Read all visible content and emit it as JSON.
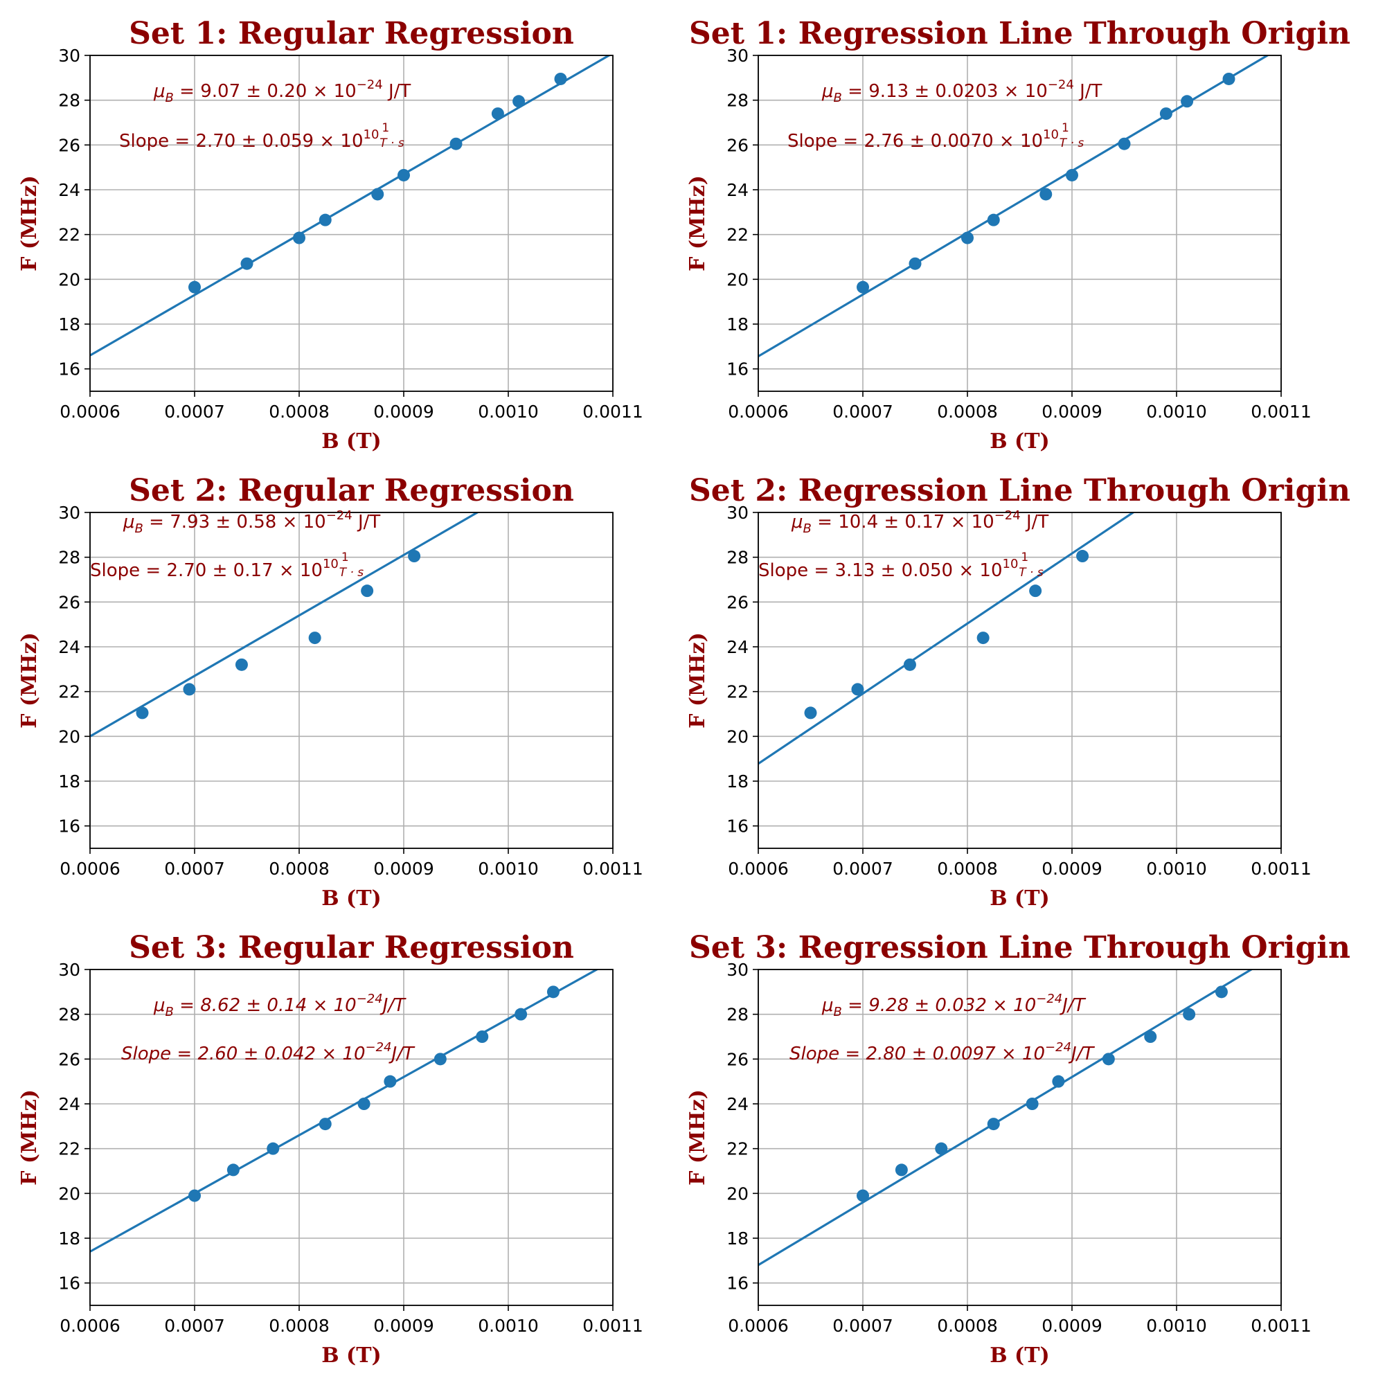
{
  "style": {
    "line_color": "#1f77b4",
    "point_color": "#1f77b4",
    "label_color": "#8b0000",
    "grid_color": "#b0b0b0"
  },
  "chart_data": [
    {
      "type": "scatter",
      "title": "Set 1: Regular Regression",
      "xlabel": "B (T)",
      "ylabel": "F (MHz)",
      "xlim": [
        0.0006,
        0.0011
      ],
      "ylim": [
        15,
        30
      ],
      "xticks": [
        "0.0006",
        "0.0007",
        "0.0008",
        "0.0009",
        "0.0010",
        "0.0011"
      ],
      "yticks": [
        "16",
        "18",
        "20",
        "22",
        "24",
        "26",
        "28",
        "30"
      ],
      "grid": true,
      "points": {
        "x": [
          0.0007,
          0.00075,
          0.0008,
          0.000825,
          0.000875,
          0.0009,
          0.00095,
          0.00099,
          0.00101,
          0.00105
        ],
        "y": [
          19.65,
          20.7,
          21.85,
          22.65,
          23.8,
          24.65,
          26.05,
          27.4,
          27.95,
          28.95
        ]
      },
      "fit_line": {
        "slope": 27000,
        "intercept": 0.4
      },
      "annotations": [
        {
          "text": "μ_B = 9.07 ± 0.20 × 10^−24 J/T",
          "base": "μ",
          "sub": "B",
          "rest": " = 9.07 ± 0.20 × 10",
          "sup": "−24",
          "unit": " J/T",
          "italic": false
        },
        {
          "text": "Slope = 2.70 ± 0.059 × 10^10 1/(T·s)",
          "base": "Slope",
          "sub": "",
          "rest": "  = 2.70 ± 0.059 × 10",
          "sup": "10",
          "unit": "",
          "frac": [
            "1",
            "T · s"
          ],
          "italic": false
        }
      ]
    },
    {
      "type": "scatter",
      "title": "Set 1: Regression Line Through Origin",
      "xlabel": "B (T)",
      "ylabel": "F (MHz)",
      "xlim": [
        0.0006,
        0.0011
      ],
      "ylim": [
        15,
        30
      ],
      "xticks": [
        "0.0006",
        "0.0007",
        "0.0008",
        "0.0009",
        "0.0010",
        "0.0011"
      ],
      "yticks": [
        "16",
        "18",
        "20",
        "22",
        "24",
        "26",
        "28",
        "30"
      ],
      "grid": true,
      "points": {
        "x": [
          0.0007,
          0.00075,
          0.0008,
          0.000825,
          0.000875,
          0.0009,
          0.00095,
          0.00099,
          0.00101,
          0.00105
        ],
        "y": [
          19.65,
          20.7,
          21.85,
          22.65,
          23.8,
          24.65,
          26.05,
          27.4,
          27.95,
          28.95
        ]
      },
      "fit_line": {
        "slope": 27600,
        "intercept": 0
      },
      "annotations": [
        {
          "text": "μ_B = 9.13 ± 0.0203 × 10^−24 J/T",
          "base": "μ",
          "sub": "B",
          "rest": " = 9.13 ± 0.0203 × 10",
          "sup": "−24",
          "unit": " J/T",
          "italic": false
        },
        {
          "text": "Slope = 2.76 ± 0.0070 × 10^10 1/(T·s)",
          "base": "Slope",
          "sub": "",
          "rest": "  = 2.76 ± 0.0070 × 10",
          "sup": "10",
          "unit": "",
          "frac": [
            "1",
            "T · s"
          ],
          "italic": false
        }
      ]
    },
    {
      "type": "scatter",
      "title": "Set 2: Regular Regression",
      "xlabel": "B (T)",
      "ylabel": "F (MHz)",
      "xlim": [
        0.0006,
        0.0011
      ],
      "ylim": [
        15,
        30
      ],
      "xticks": [
        "0.0006",
        "0.0007",
        "0.0008",
        "0.0009",
        "0.0010",
        "0.0011"
      ],
      "yticks": [
        "16",
        "18",
        "20",
        "22",
        "24",
        "26",
        "28",
        "30"
      ],
      "grid": true,
      "points": {
        "x": [
          0.00065,
          0.000695,
          0.000745,
          0.000815,
          0.000865,
          0.00091
        ],
        "y": [
          21.05,
          22.1,
          23.2,
          24.4,
          26.5,
          28.05
        ]
      },
      "fit_line": {
        "slope": 27000,
        "intercept": 3.8
      },
      "annotations": [
        {
          "text": "μ_B = 7.93 ± 0.58 × 10^−24 J/T",
          "base": "μ",
          "sub": "B",
          "rest": " = 7.93 ± 0.58 × 10",
          "sup": "−24",
          "unit": " J/T",
          "italic": false
        },
        {
          "text": "Slope = 2.70 ± 0.17 × 10^10 1/(T·s)",
          "base": "Slope",
          "sub": "",
          "rest": "  = 2.70 ± 0.17 × 10",
          "sup": "10",
          "unit": "",
          "frac": [
            "1",
            "T · s"
          ],
          "italic": false
        }
      ]
    },
    {
      "type": "scatter",
      "title": "Set 2: Regression Line Through Origin",
      "xlabel": "B (T)",
      "ylabel": "F (MHz)",
      "xlim": [
        0.0006,
        0.0011
      ],
      "ylim": [
        15,
        30
      ],
      "xticks": [
        "0.0006",
        "0.0007",
        "0.0008",
        "0.0009",
        "0.0010",
        "0.0011"
      ],
      "yticks": [
        "16",
        "18",
        "20",
        "22",
        "24",
        "26",
        "28",
        "30"
      ],
      "grid": true,
      "points": {
        "x": [
          0.00065,
          0.000695,
          0.000745,
          0.000815,
          0.000865,
          0.00091
        ],
        "y": [
          21.05,
          22.1,
          23.2,
          24.4,
          26.5,
          28.05
        ]
      },
      "fit_line": {
        "slope": 31300,
        "intercept": 0
      },
      "annotations": [
        {
          "text": "μ_B = 10.4 ± 0.17 × 10^−24 J/T",
          "base": "μ",
          "sub": "B",
          "rest": " = 10.4 ± 0.17 × 10",
          "sup": "−24",
          "unit": " J/T",
          "italic": false
        },
        {
          "text": "Slope = 3.13 ± 0.050 × 10^10 1/(T·s)",
          "base": "Slope",
          "sub": "",
          "rest": "  = 3.13 ± 0.050 × 10",
          "sup": "10",
          "unit": "",
          "frac": [
            "1",
            "T · s"
          ],
          "italic": false
        }
      ]
    },
    {
      "type": "scatter",
      "title": "Set 3: Regular Regression",
      "xlabel": "B (T)",
      "ylabel": "F (MHz)",
      "xlim": [
        0.0006,
        0.0011
      ],
      "ylim": [
        15,
        30
      ],
      "xticks": [
        "0.0006",
        "0.0007",
        "0.0008",
        "0.0009",
        "0.0010",
        "0.0011"
      ],
      "yticks": [
        "16",
        "18",
        "20",
        "22",
        "24",
        "26",
        "28",
        "30"
      ],
      "grid": true,
      "points": {
        "x": [
          0.0007,
          0.000737,
          0.000775,
          0.000825,
          0.000862,
          0.000887,
          0.000935,
          0.000975,
          0.001012,
          0.001043
        ],
        "y": [
          19.9,
          21.05,
          22.0,
          23.1,
          24.0,
          25.0,
          26.0,
          27.0,
          28.0,
          29.0
        ]
      },
      "fit_line": {
        "slope": 26000,
        "intercept": 1.8
      },
      "annotations": [
        {
          "text": "μ_B = 8.62 ± 0.14 × 10^−24 J/T",
          "base": "μ",
          "sub": "B",
          "rest": " = 8.62 ± 0.14 × 10",
          "sup": "−24",
          "unit": "J/T",
          "italic": true
        },
        {
          "text": "Slope = 2.60 ± 0.042 × 10^−24 J/T",
          "base": "Slope",
          "sub": "",
          "rest": " = 2.60 ± 0.042 × 10",
          "sup": "−24",
          "unit": "J/T",
          "italic": true
        }
      ]
    },
    {
      "type": "scatter",
      "title": "Set 3: Regression Line Through Origin",
      "xlabel": "B (T)",
      "ylabel": "F (MHz)",
      "xlim": [
        0.0006,
        0.0011
      ],
      "ylim": [
        15,
        30
      ],
      "xticks": [
        "0.0006",
        "0.0007",
        "0.0008",
        "0.0009",
        "0.0010",
        "0.0011"
      ],
      "yticks": [
        "16",
        "18",
        "20",
        "22",
        "24",
        "26",
        "28",
        "30"
      ],
      "grid": true,
      "points": {
        "x": [
          0.0007,
          0.000737,
          0.000775,
          0.000825,
          0.000862,
          0.000887,
          0.000935,
          0.000975,
          0.001012,
          0.001043
        ],
        "y": [
          19.9,
          21.05,
          22.0,
          23.1,
          24.0,
          25.0,
          26.0,
          27.0,
          28.0,
          29.0
        ]
      },
      "fit_line": {
        "slope": 28000,
        "intercept": 0
      },
      "annotations": [
        {
          "text": "μ_B = 9.28 ± 0.032 × 10^−24 J/T",
          "base": "μ",
          "sub": "B",
          "rest": " = 9.28 ± 0.032 × 10",
          "sup": "−24",
          "unit": "J/T",
          "italic": true
        },
        {
          "text": "Slope = 2.80 ± 0.0097 × 10^−24 J/T",
          "base": "Slope",
          "sub": "",
          "rest": " = 2.80 ± 0.0097 × 10",
          "sup": "−24",
          "unit": "J/T",
          "italic": true
        }
      ]
    }
  ]
}
